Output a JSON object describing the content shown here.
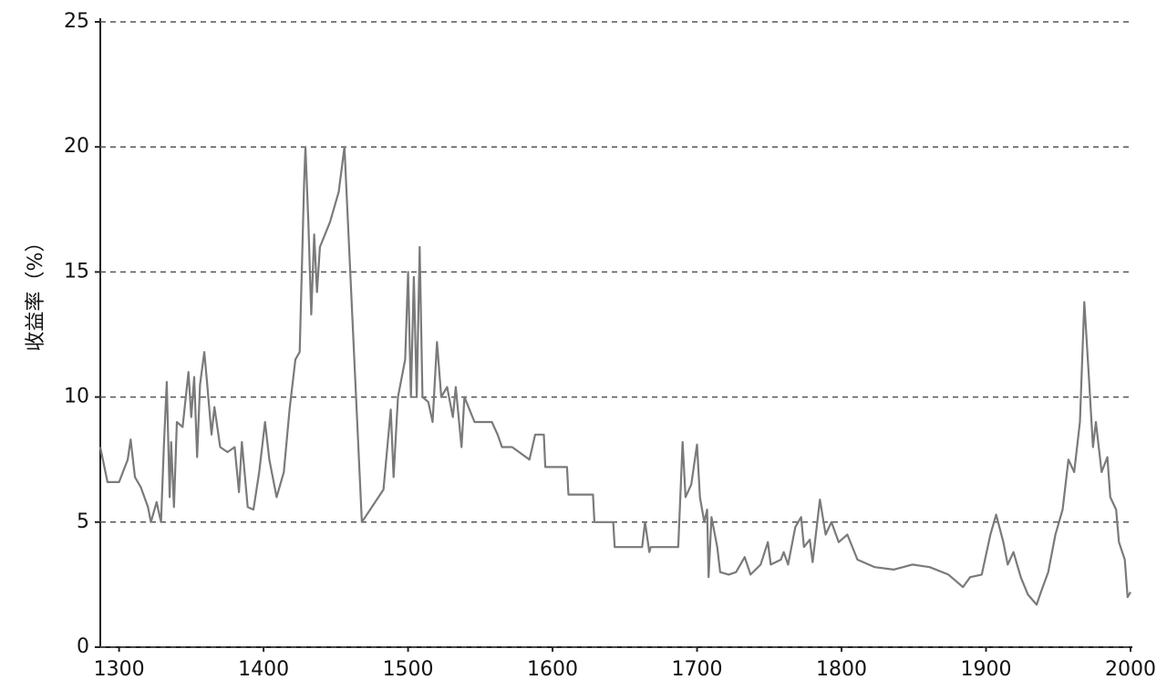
{
  "chart_data": {
    "type": "line",
    "y_label": "收益率（%）",
    "x": [
      1287,
      1292,
      1300,
      1306,
      1308,
      1311,
      1315,
      1320,
      1322,
      1326,
      1329,
      1331,
      1333,
      1335,
      1336,
      1338,
      1340,
      1344,
      1348,
      1350,
      1352,
      1354,
      1356,
      1359,
      1361,
      1364,
      1366,
      1370,
      1375,
      1380,
      1383,
      1385,
      1389,
      1393,
      1397,
      1401,
      1404,
      1409,
      1414,
      1418,
      1422,
      1425,
      1428,
      1429,
      1431,
      1433,
      1435,
      1437,
      1439,
      1446,
      1452,
      1456,
      1468,
      1483,
      1488,
      1490,
      1493,
      1498,
      1500,
      1502,
      1504,
      1506,
      1508,
      1510,
      1514,
      1517,
      1520,
      1523,
      1527,
      1531,
      1533,
      1537,
      1539,
      1546,
      1558,
      1562,
      1565,
      1572,
      1584,
      1588,
      1594,
      1595,
      1610,
      1611,
      1628,
      1629,
      1642,
      1643,
      1662,
      1664,
      1667,
      1668,
      1687,
      1690,
      1692,
      1696,
      1700,
      1702,
      1705,
      1707,
      1708,
      1710,
      1714,
      1716,
      1722,
      1727,
      1733,
      1737,
      1744,
      1749,
      1751,
      1758,
      1760,
      1763,
      1768,
      1772,
      1774,
      1778,
      1780,
      1785,
      1789,
      1793,
      1798,
      1804,
      1811,
      1823,
      1836,
      1849,
      1861,
      1874,
      1884,
      1889,
      1897,
      1903,
      1907,
      1912,
      1915,
      1919,
      1924,
      1929,
      1935,
      1938,
      1943,
      1948,
      1953,
      1957,
      1961,
      1965,
      1968,
      1971,
      1974,
      1976,
      1980,
      1984,
      1986,
      1990,
      1992,
      1996,
      1998,
      2000
    ],
    "series": [
      {
        "color": "#7a7a7a",
        "values": [
          8,
          6.6,
          6.6,
          7.5,
          8.3,
          6.8,
          6.4,
          5.6,
          5,
          5.8,
          5,
          8,
          10.6,
          6,
          8.2,
          5.6,
          9,
          8.8,
          11,
          9.2,
          10.8,
          7.6,
          10.5,
          11.8,
          10.5,
          8.5,
          9.6,
          8,
          7.8,
          8,
          6.2,
          8.2,
          5.6,
          5.5,
          7,
          9,
          7.5,
          6,
          7,
          9.5,
          11.5,
          11.8,
          18.5,
          20,
          17,
          13.3,
          16.5,
          14.2,
          16,
          17,
          18.2,
          20,
          5,
          6.3,
          9.5,
          6.8,
          10,
          11.5,
          15,
          10,
          14.8,
          10,
          16,
          10,
          9.8,
          9,
          12.2,
          10,
          10.4,
          9.2,
          10.4,
          8,
          10,
          9,
          9,
          8.5,
          8,
          8,
          7.5,
          8.5,
          8.5,
          7.2,
          7.2,
          6.1,
          6.1,
          5,
          5,
          4,
          4,
          5,
          3.8,
          4,
          4,
          8.2,
          6,
          6.5,
          8.1,
          6,
          5,
          5.5,
          2.8,
          5.2,
          4,
          3,
          2.9,
          3,
          3.6,
          2.9,
          3.3,
          4.2,
          3.3,
          3.5,
          3.8,
          3.3,
          4.8,
          5.2,
          4,
          4.3,
          3.4,
          5.9,
          4.5,
          5,
          4.2,
          4.5,
          3.5,
          3.2,
          3.1,
          3.3,
          3.2,
          2.9,
          2.4,
          2.8,
          2.9,
          4.5,
          5.3,
          4.2,
          3.3,
          3.8,
          2.8,
          2.1,
          1.7,
          2.2,
          3,
          4.5,
          5.5,
          7.5,
          7,
          9,
          13.8,
          11,
          8,
          9,
          7,
          7.6,
          6,
          5.5,
          4.2,
          3.5,
          2,
          2.2
        ]
      }
    ],
    "xlim": [
      1287,
      2000
    ],
    "xticks": [
      1300,
      1400,
      1500,
      1600,
      1700,
      1800,
      1900,
      2000
    ],
    "ylim": [
      0,
      25
    ],
    "yticks": [
      0,
      5,
      10,
      15,
      20,
      25
    ],
    "grid": true
  }
}
